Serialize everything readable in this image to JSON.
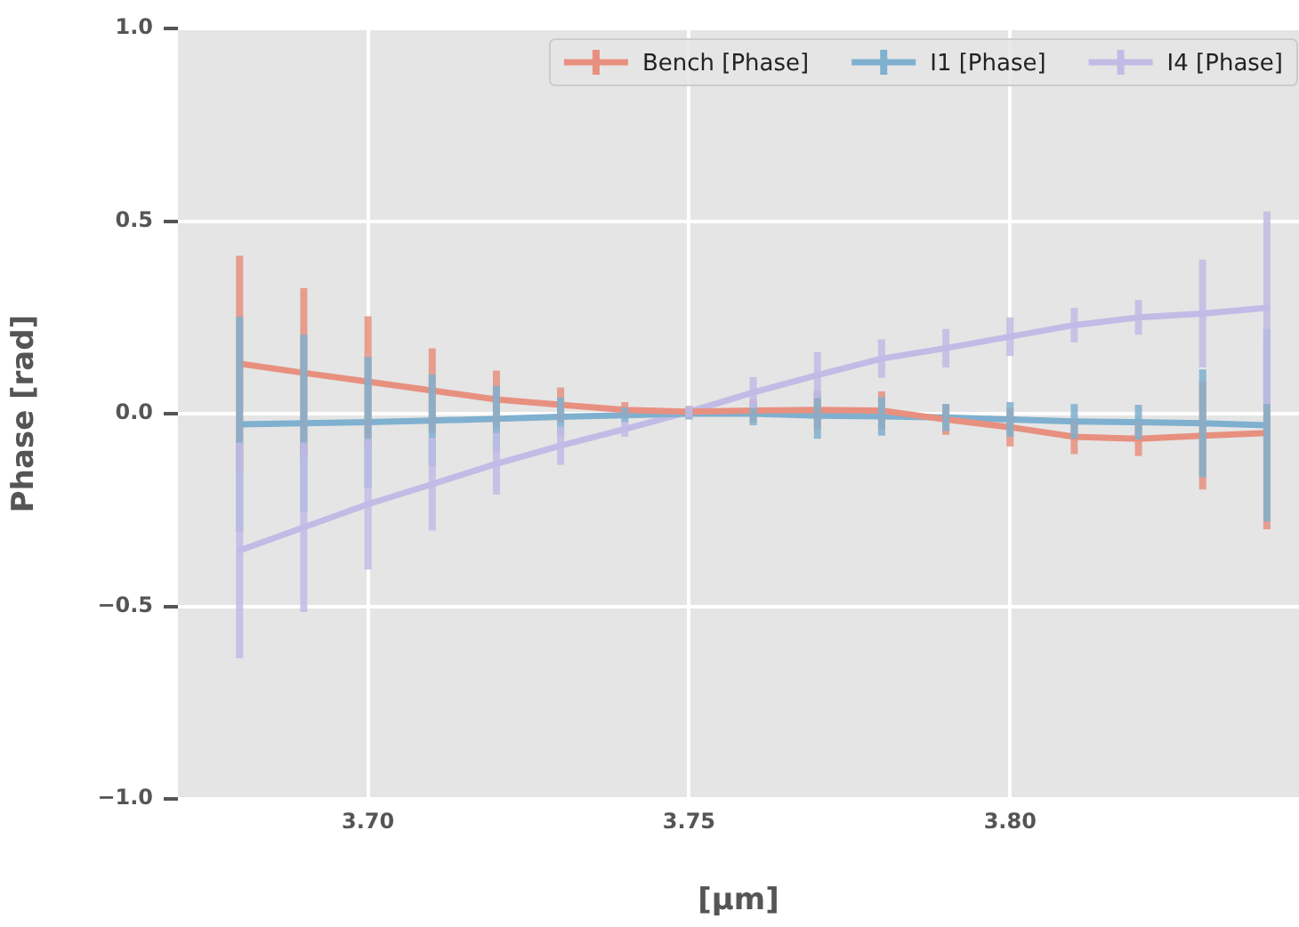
{
  "chart_data": {
    "type": "line",
    "xlabel": "[μm]",
    "ylabel": "Phase [rad]",
    "x": [
      3.68,
      3.69,
      3.7,
      3.71,
      3.72,
      3.73,
      3.74,
      3.75,
      3.76,
      3.77,
      3.78,
      3.79,
      3.8,
      3.81,
      3.82,
      3.83,
      3.84
    ],
    "series": [
      {
        "name": "Bench [Phase]",
        "color": "#e8907f",
        "values": [
          0.13,
          0.106,
          0.083,
          0.06,
          0.037,
          0.023,
          0.01,
          0.005,
          0.008,
          0.01,
          0.008,
          -0.015,
          -0.035,
          -0.06,
          -0.065,
          -0.057,
          -0.05
        ],
        "errors": [
          0.28,
          0.22,
          0.17,
          0.11,
          0.075,
          0.045,
          0.02,
          0.015,
          0.03,
          0.05,
          0.05,
          0.04,
          0.05,
          0.045,
          0.045,
          0.14,
          0.25
        ]
      },
      {
        "name": "I1 [Phase]",
        "color": "#7fb0cf",
        "values": [
          -0.028,
          -0.025,
          -0.022,
          -0.018,
          -0.013,
          -0.008,
          -0.004,
          0,
          0,
          -0.005,
          -0.007,
          -0.01,
          -0.015,
          -0.02,
          -0.022,
          -0.025,
          -0.03
        ],
        "errors": [
          0.28,
          0.23,
          0.17,
          0.12,
          0.085,
          0.05,
          0.02,
          0.015,
          0.03,
          0.06,
          0.05,
          0.035,
          0.045,
          0.045,
          0.045,
          0.14,
          0.25
        ]
      },
      {
        "name": "I4 [Phase]",
        "color": "#c2bbe6",
        "values": [
          -0.355,
          -0.295,
          -0.235,
          -0.183,
          -0.13,
          -0.083,
          -0.04,
          0.005,
          0.055,
          0.1,
          0.143,
          0.17,
          0.2,
          0.23,
          0.25,
          0.26,
          0.275
        ],
        "errors": [
          0.28,
          0.22,
          0.17,
          0.12,
          0.08,
          0.05,
          0.02,
          0.015,
          0.04,
          0.06,
          0.05,
          0.05,
          0.05,
          0.045,
          0.045,
          0.14,
          0.25
        ]
      }
    ],
    "xlim": [
      3.6704,
      3.845
    ],
    "xticks": [
      {
        "value": 3.7,
        "label": "3.70"
      },
      {
        "value": 3.75,
        "label": "3.75"
      },
      {
        "value": 3.8,
        "label": "3.80"
      }
    ],
    "ylim": [
      -1.0,
      1.0
    ],
    "yticks": [
      {
        "value": -1.0,
        "label": "−1.0"
      },
      {
        "value": -0.5,
        "label": "−0.5"
      },
      {
        "value": 0,
        "label": "0.0"
      },
      {
        "value": 0.5,
        "label": "0.5"
      },
      {
        "value": 1.0,
        "label": "1.0"
      }
    ],
    "grid": true,
    "legend": "top right",
    "marker": "none",
    "line_style": "solid"
  }
}
